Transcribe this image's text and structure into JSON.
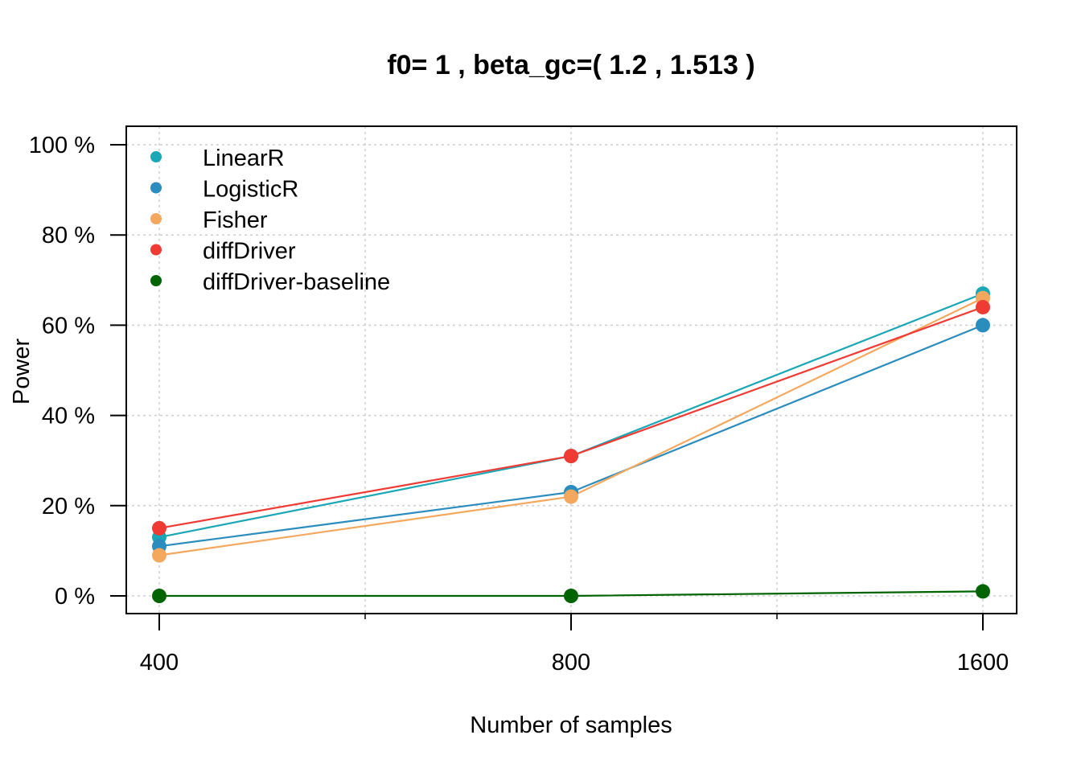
{
  "chart_data": {
    "type": "line",
    "title": "f0= 1 , beta_gc=( 1.2 , 1.513 )",
    "xlabel": "Number of samples",
    "ylabel": "Power",
    "x_scale": "log",
    "categories": [
      "400",
      "800",
      "1600"
    ],
    "x": [
      400,
      800,
      1600
    ],
    "xlim": [
      400,
      1600
    ],
    "ylim": [
      0,
      100
    ],
    "y_ticks": [
      "0 %",
      "20 %",
      "40 %",
      "60 %",
      "80 %",
      "100 %"
    ],
    "grid": true,
    "legend_position": "top-left",
    "series": [
      {
        "name": "LinearR",
        "color": "#1AA7B6",
        "values": [
          13,
          31,
          67
        ]
      },
      {
        "name": "LogisticR",
        "color": "#2B8CBE",
        "values": [
          11,
          23,
          60
        ]
      },
      {
        "name": "Fisher",
        "color": "#F4A85E",
        "values": [
          9,
          22,
          66
        ]
      },
      {
        "name": "diffDriver",
        "color": "#F03B35",
        "values": [
          15,
          31,
          64
        ]
      },
      {
        "name": "diffDriver-baseline",
        "color": "#006400",
        "values": [
          0,
          0,
          1
        ]
      }
    ]
  }
}
